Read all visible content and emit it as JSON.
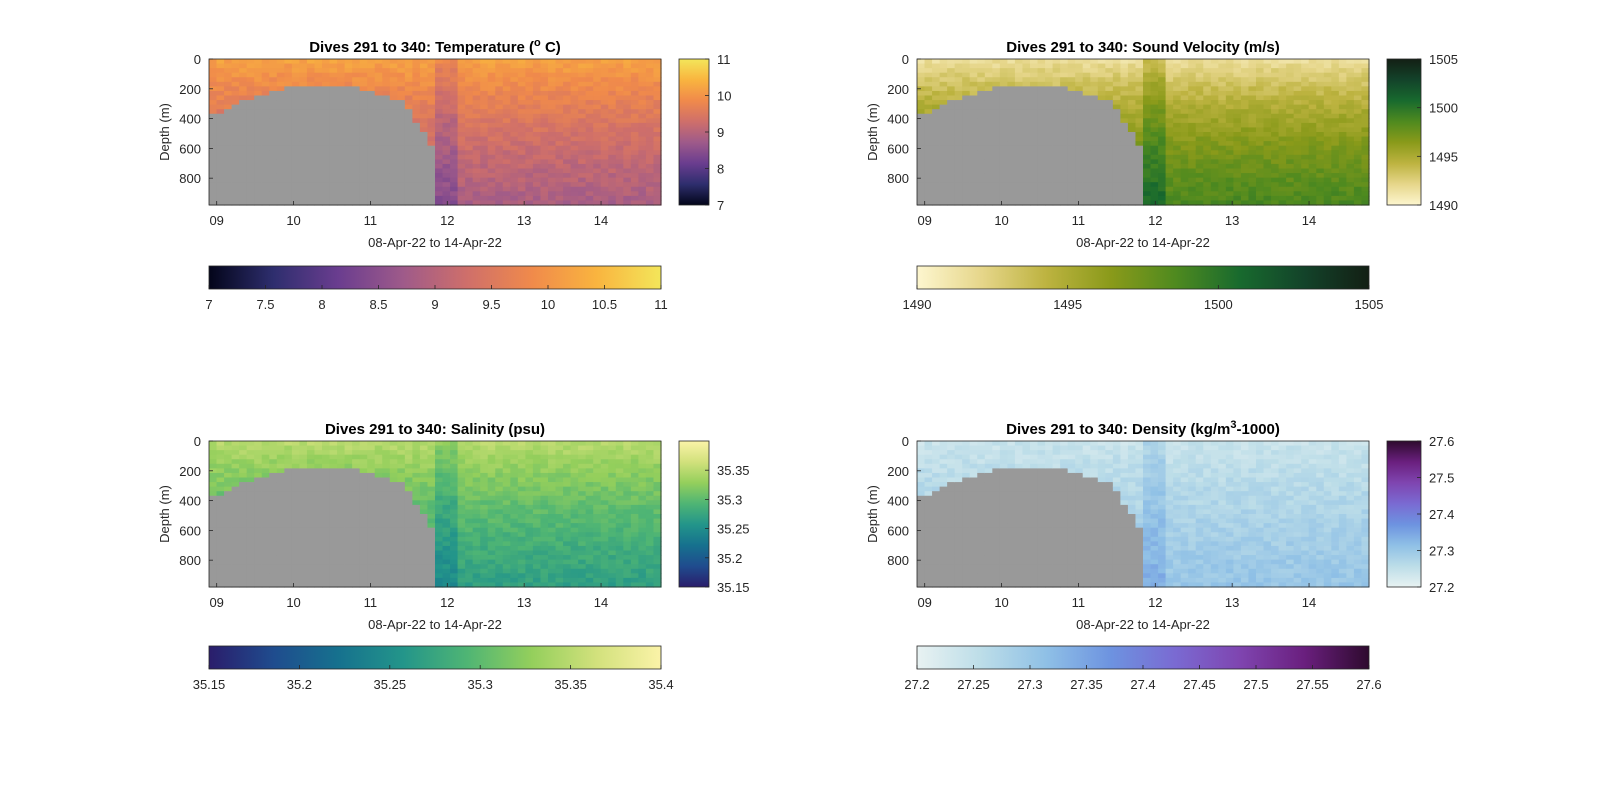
{
  "chart_data": [
    {
      "type": "heatmap",
      "title_main": "Dives 291 to 340: Temperature (",
      "title_sup": "o",
      "title_tail": " C)",
      "ylabel": "Depth (m)",
      "xlabel": "08-Apr-22 to 14-Apr-22",
      "x_range": [
        8.9,
        14.78
      ],
      "y_range": [
        0,
        980
      ],
      "xticks": [
        9,
        10,
        11,
        12,
        13,
        14
      ],
      "xtick_labels": [
        "09",
        "10",
        "11",
        "12",
        "13",
        "14"
      ],
      "yticks": [
        0,
        200,
        400,
        600,
        800
      ],
      "ytick_labels": [
        "0",
        "200",
        "400",
        "600",
        "800"
      ],
      "clim": [
        7,
        11
      ],
      "side_ticks": [
        7,
        8,
        9,
        10,
        11
      ],
      "side_tick_labels": [
        "7",
        "8",
        "9",
        "10",
        "11"
      ],
      "bottom_ticks": [
        7,
        7.5,
        8,
        8.5,
        9,
        9.5,
        10,
        10.5,
        11
      ],
      "bottom_tick_labels": [
        "7",
        "7.5",
        "8",
        "8.5",
        "9",
        "9.5",
        "10",
        "10.5",
        "11"
      ],
      "colormap": [
        "#03051a",
        "#2e2e6e",
        "#6a3d8f",
        "#9e5a8a",
        "#cf6f6a",
        "#f08a4b",
        "#f9b43f",
        "#f3e65a"
      ],
      "profile": {
        "surface": 10.2,
        "deep": 7.9,
        "scale": 1100
      },
      "no_data_color": "#999999"
    },
    {
      "type": "heatmap",
      "title_main": "Dives 291 to 340: Sound Velocity (m/s)",
      "title_sup": "",
      "title_tail": "",
      "ylabel": "Depth (m)",
      "xlabel": "08-Apr-22 to 14-Apr-22",
      "x_range": [
        8.9,
        14.78
      ],
      "y_range": [
        0,
        980
      ],
      "xticks": [
        9,
        10,
        11,
        12,
        13,
        14
      ],
      "xtick_labels": [
        "09",
        "10",
        "11",
        "12",
        "13",
        "14"
      ],
      "yticks": [
        0,
        200,
        400,
        600,
        800
      ],
      "ytick_labels": [
        "0",
        "200",
        "400",
        "600",
        "800"
      ],
      "clim": [
        1490,
        1505
      ],
      "side_ticks": [
        1490,
        1495,
        1500,
        1505
      ],
      "side_tick_labels": [
        "1490",
        "1495",
        "1500",
        "1505"
      ],
      "bottom_ticks": [
        1490,
        1495,
        1500,
        1505
      ],
      "bottom_tick_labels": [
        "1490",
        "1495",
        "1500",
        "1505"
      ],
      "colormap": [
        "#fdf6cf",
        "#e6d68a",
        "#bdb340",
        "#8a9a1a",
        "#4f8a1f",
        "#186a2e",
        "#13432a",
        "#131f14"
      ],
      "profile": {
        "surface": 1491.5,
        "deep": 1502.5,
        "scale": 900
      },
      "no_data_color": "#999999"
    },
    {
      "type": "heatmap",
      "title_main": "Dives 291 to 340: Salinity (psu)",
      "title_sup": "",
      "title_tail": "",
      "ylabel": "Depth (m)",
      "xlabel": "08-Apr-22 to 14-Apr-22",
      "x_range": [
        8.9,
        14.78
      ],
      "y_range": [
        0,
        980
      ],
      "xticks": [
        9,
        10,
        11,
        12,
        13,
        14
      ],
      "xtick_labels": [
        "09",
        "10",
        "11",
        "12",
        "13",
        "14"
      ],
      "yticks": [
        0,
        200,
        400,
        600,
        800
      ],
      "ytick_labels": [
        "0",
        "200",
        "400",
        "600",
        "800"
      ],
      "clim": [
        35.15,
        35.4
      ],
      "side_ticks": [
        35.15,
        35.2,
        35.25,
        35.3,
        35.35
      ],
      "side_tick_labels": [
        "35.15",
        "35.2",
        "35.25",
        "35.3",
        "35.35"
      ],
      "bottom_ticks": [
        35.15,
        35.2,
        35.25,
        35.3,
        35.35,
        35.4
      ],
      "bottom_tick_labels": [
        "35.15",
        "35.2",
        "35.25",
        "35.3",
        "35.35",
        "35.4"
      ],
      "colormap": [
        "#2a1d6b",
        "#1f4c8e",
        "#16718e",
        "#23958a",
        "#4fb574",
        "#94cf5c",
        "#d2e17c",
        "#fbf3a8"
      ],
      "profile": {
        "surface": 35.35,
        "deep": 35.22,
        "scale": 1000
      },
      "no_data_color": "#999999"
    },
    {
      "type": "heatmap",
      "title_main": "Dives 291 to 340: Density (kg/m",
      "title_sup": "3",
      "title_tail": "-1000)",
      "ylabel": "Depth (m)",
      "xlabel": "08-Apr-22 to 14-Apr-22",
      "x_range": [
        8.9,
        14.78
      ],
      "y_range": [
        0,
        980
      ],
      "xticks": [
        9,
        10,
        11,
        12,
        13,
        14
      ],
      "xtick_labels": [
        "09",
        "10",
        "11",
        "12",
        "13",
        "14"
      ],
      "yticks": [
        0,
        200,
        400,
        600,
        800
      ],
      "ytick_labels": [
        "0",
        "200",
        "400",
        "600",
        "800"
      ],
      "clim": [
        27.2,
        27.6
      ],
      "side_ticks": [
        27.2,
        27.3,
        27.4,
        27.5,
        27.6
      ],
      "side_tick_labels": [
        "27.2",
        "27.3",
        "27.4",
        "27.5",
        "27.6"
      ],
      "bottom_ticks": [
        27.2,
        27.25,
        27.3,
        27.35,
        27.4,
        27.45,
        27.5,
        27.55,
        27.6
      ],
      "bottom_tick_labels": [
        "27.2",
        "27.25",
        "27.3",
        "27.35",
        "27.4",
        "27.45",
        "27.5",
        "27.55",
        "27.6"
      ],
      "colormap": [
        "#e8f2f2",
        "#bcdde8",
        "#8fc0e6",
        "#6d93e0",
        "#7a6ad2",
        "#7f45b0",
        "#6a1f7e",
        "#2e0a2e"
      ],
      "profile": {
        "surface": 27.24,
        "deep": 27.42,
        "scale": 2200
      },
      "no_data_color": "#999999"
    }
  ]
}
